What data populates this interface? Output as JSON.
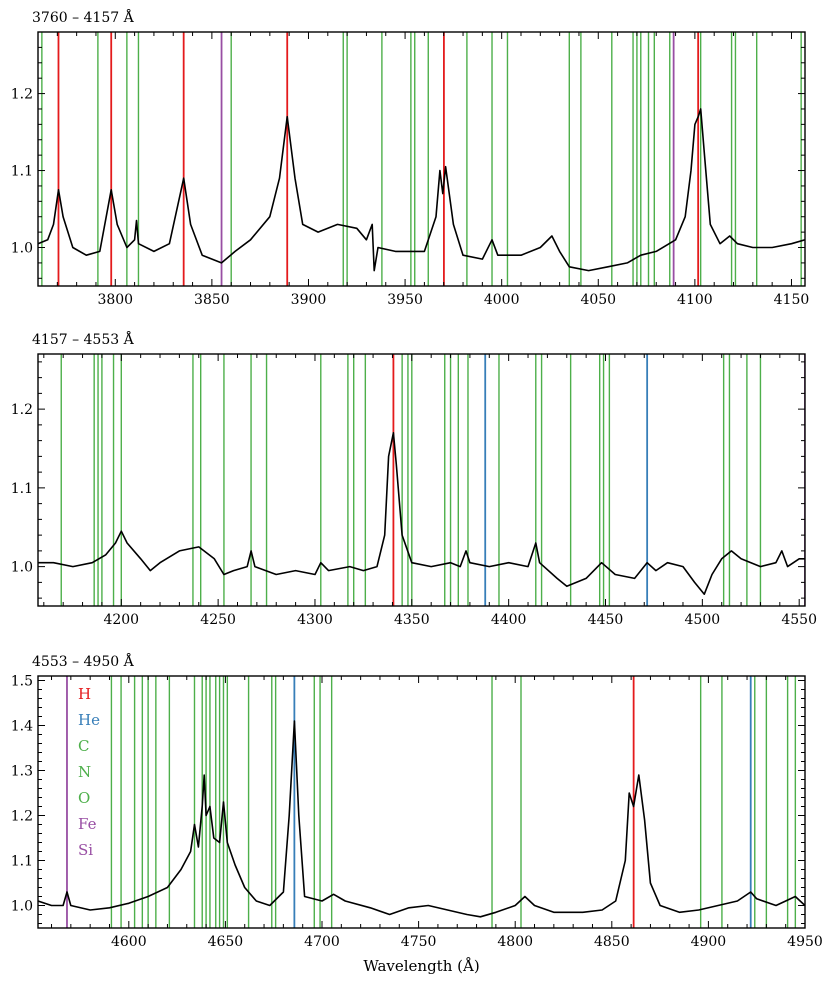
{
  "chart_data": [
    {
      "type": "line",
      "title": "3760 – 4157 Å",
      "xlim": [
        3760,
        4157
      ],
      "ylim": [
        0.95,
        1.28
      ],
      "xticks": [
        3800,
        3850,
        3900,
        3950,
        4000,
        4050,
        4100,
        4150
      ],
      "yticks": [
        1.0,
        1.1,
        1.2
      ],
      "xlabel": "",
      "ylabel": "",
      "grid": false,
      "line_colors": {
        "H": "#e41a1c",
        "He": "#377eb8",
        "CNO": "#4daf4a",
        "FeSi": "#984ea3"
      },
      "lines": {
        "H": [
          3770.6,
          3797.9,
          3835.4,
          3889.0,
          3970.1,
          4101.7
        ],
        "He": [],
        "CNO": [
          3762,
          3791,
          3806,
          3812,
          3860,
          3918,
          3920,
          3938,
          3953,
          3955,
          3962,
          3982,
          3995,
          4003,
          4035,
          4041,
          4057,
          4068,
          4070,
          4072,
          4076,
          4079,
          4087,
          4103,
          4119,
          4121,
          4132,
          4155
        ],
        "FeSi": [
          3855,
          4089
        ]
      },
      "spectrum": [
        [
          3760,
          1.005
        ],
        [
          3765,
          1.01
        ],
        [
          3768,
          1.03
        ],
        [
          3770.6,
          1.075
        ],
        [
          3773,
          1.04
        ],
        [
          3778,
          1.0
        ],
        [
          3785,
          0.99
        ],
        [
          3792,
          0.995
        ],
        [
          3797.9,
          1.075
        ],
        [
          3801,
          1.03
        ],
        [
          3806,
          1.0
        ],
        [
          3810,
          1.01
        ],
        [
          3811,
          1.035
        ],
        [
          3812,
          1.005
        ],
        [
          3820,
          0.995
        ],
        [
          3828,
          1.005
        ],
        [
          3835.4,
          1.09
        ],
        [
          3839,
          1.03
        ],
        [
          3845,
          0.99
        ],
        [
          3855,
          0.98
        ],
        [
          3862,
          0.995
        ],
        [
          3870,
          1.01
        ],
        [
          3880,
          1.04
        ],
        [
          3885,
          1.09
        ],
        [
          3889,
          1.17
        ],
        [
          3893,
          1.09
        ],
        [
          3897,
          1.03
        ],
        [
          3905,
          1.02
        ],
        [
          3915,
          1.03
        ],
        [
          3925,
          1.025
        ],
        [
          3930,
          1.01
        ],
        [
          3933,
          1.03
        ],
        [
          3934,
          0.97
        ],
        [
          3936,
          1.0
        ],
        [
          3945,
          0.995
        ],
        [
          3960,
          0.995
        ],
        [
          3966,
          1.04
        ],
        [
          3968,
          1.1
        ],
        [
          3969.5,
          1.07
        ],
        [
          3971,
          1.105
        ],
        [
          3975,
          1.03
        ],
        [
          3980,
          0.99
        ],
        [
          3990,
          0.985
        ],
        [
          3995,
          1.01
        ],
        [
          3998,
          0.99
        ],
        [
          4010,
          0.99
        ],
        [
          4020,
          1.0
        ],
        [
          4026,
          1.015
        ],
        [
          4030,
          0.995
        ],
        [
          4035,
          0.975
        ],
        [
          4045,
          0.97
        ],
        [
          4055,
          0.975
        ],
        [
          4065,
          0.98
        ],
        [
          4072,
          0.99
        ],
        [
          4080,
          0.995
        ],
        [
          4090,
          1.01
        ],
        [
          4095,
          1.04
        ],
        [
          4098,
          1.1
        ],
        [
          4100,
          1.16
        ],
        [
          4101.7,
          1.17
        ],
        [
          4103,
          1.18
        ],
        [
          4105,
          1.12
        ],
        [
          4108,
          1.03
        ],
        [
          4113,
          1.005
        ],
        [
          4118,
          1.015
        ],
        [
          4122,
          1.005
        ],
        [
          4130,
          1.0
        ],
        [
          4140,
          1.0
        ],
        [
          4150,
          1.005
        ],
        [
          4157,
          1.01
        ]
      ]
    },
    {
      "type": "line",
      "title": "4157 – 4553 Å",
      "xlim": [
        4157,
        4553
      ],
      "ylim": [
        0.95,
        1.27
      ],
      "xticks": [
        4200,
        4250,
        4300,
        4350,
        4400,
        4450,
        4500,
        4550
      ],
      "yticks": [
        1.0,
        1.1,
        1.2
      ],
      "xlabel": "",
      "ylabel": "",
      "grid": false,
      "line_colors": {
        "H": "#e41a1c",
        "He": "#377eb8",
        "CNO": "#4daf4a",
        "FeSi": "#984ea3"
      },
      "lines": {
        "H": [
          4340.5
        ],
        "He": [
          4387.9,
          4471.5
        ],
        "CNO": [
          4169,
          4186,
          4188,
          4190,
          4196,
          4200,
          4237,
          4241,
          4253,
          4267,
          4275,
          4303,
          4317,
          4320,
          4326,
          4345,
          4348,
          4350,
          4367,
          4370,
          4374,
          4379,
          4395,
          4414,
          4417,
          4432,
          4447,
          4449,
          4452,
          4511,
          4514,
          4523,
          4530
        ],
        "FeSi": [
          4553
        ]
      },
      "spectrum": [
        [
          4157,
          1.005
        ],
        [
          4165,
          1.005
        ],
        [
          4175,
          1.0
        ],
        [
          4185,
          1.005
        ],
        [
          4192,
          1.015
        ],
        [
          4197,
          1.03
        ],
        [
          4200,
          1.045
        ],
        [
          4203,
          1.03
        ],
        [
          4210,
          1.01
        ],
        [
          4215,
          0.995
        ],
        [
          4220,
          1.005
        ],
        [
          4230,
          1.02
        ],
        [
          4240,
          1.025
        ],
        [
          4248,
          1.01
        ],
        [
          4253,
          0.99
        ],
        [
          4258,
          0.995
        ],
        [
          4265,
          1.0
        ],
        [
          4267,
          1.02
        ],
        [
          4269,
          1.0
        ],
        [
          4280,
          0.99
        ],
        [
          4290,
          0.995
        ],
        [
          4300,
          0.99
        ],
        [
          4303,
          1.005
        ],
        [
          4307,
          0.995
        ],
        [
          4318,
          1.0
        ],
        [
          4325,
          0.995
        ],
        [
          4332,
          1.0
        ],
        [
          4336,
          1.04
        ],
        [
          4338,
          1.14
        ],
        [
          4340.5,
          1.17
        ],
        [
          4342,
          1.13
        ],
        [
          4345,
          1.04
        ],
        [
          4350,
          1.005
        ],
        [
          4360,
          1.0
        ],
        [
          4370,
          1.005
        ],
        [
          4375,
          1.0
        ],
        [
          4378,
          1.02
        ],
        [
          4380,
          1.005
        ],
        [
          4390,
          1.0
        ],
        [
          4400,
          1.005
        ],
        [
          4410,
          1.0
        ],
        [
          4414,
          1.03
        ],
        [
          4416,
          1.005
        ],
        [
          4425,
          0.985
        ],
        [
          4430,
          0.975
        ],
        [
          4440,
          0.985
        ],
        [
          4448,
          1.005
        ],
        [
          4455,
          0.99
        ],
        [
          4465,
          0.985
        ],
        [
          4471.5,
          1.005
        ],
        [
          4476,
          0.995
        ],
        [
          4482,
          1.005
        ],
        [
          4490,
          1.0
        ],
        [
          4496,
          0.98
        ],
        [
          4501,
          0.965
        ],
        [
          4505,
          0.99
        ],
        [
          4510,
          1.01
        ],
        [
          4515,
          1.02
        ],
        [
          4520,
          1.01
        ],
        [
          4530,
          1.0
        ],
        [
          4538,
          1.005
        ],
        [
          4541,
          1.02
        ],
        [
          4544,
          1.0
        ],
        [
          4550,
          1.01
        ],
        [
          4553,
          1.01
        ]
      ]
    },
    {
      "type": "line",
      "title": "4553 – 4950 Å",
      "xlim": [
        4553,
        4950
      ],
      "ylim": [
        0.95,
        1.51
      ],
      "xticks": [
        4600,
        4650,
        4700,
        4750,
        4800,
        4850,
        4900,
        4950
      ],
      "yticks": [
        1.0,
        1.1,
        1.2,
        1.3,
        1.4,
        1.5
      ],
      "xlabel": "Wavelength (Å)",
      "ylabel": "",
      "grid": false,
      "legend": {
        "placement": "top-left",
        "entries": [
          {
            "label": "H",
            "color": "#e41a1c"
          },
          {
            "label": "He",
            "color": "#377eb8"
          },
          {
            "label": "C",
            "color": "#4daf4a"
          },
          {
            "label": "N",
            "color": "#4daf4a"
          },
          {
            "label": "O",
            "color": "#4daf4a"
          },
          {
            "label": "Fe",
            "color": "#984ea3"
          },
          {
            "label": "Si",
            "color": "#984ea3"
          }
        ]
      },
      "line_colors": {
        "H": "#e41a1c",
        "He": "#377eb8",
        "CNO": "#4daf4a",
        "FeSi": "#984ea3"
      },
      "lines": {
        "H": [
          4861.3
        ],
        "He": [
          4685.7,
          4921.9
        ],
        "CNO": [
          4591,
          4596,
          4603,
          4607,
          4610,
          4614,
          4621,
          4634,
          4638,
          4640,
          4642,
          4645,
          4647,
          4649,
          4651,
          4662,
          4674,
          4676,
          4696,
          4699,
          4705,
          4788,
          4803,
          4896,
          4907,
          4924,
          4930,
          4941,
          4945
        ],
        "FeSi": [
          4568
        ]
      },
      "spectrum": [
        [
          4553,
          1.01
        ],
        [
          4560,
          1.0
        ],
        [
          4566,
          1.0
        ],
        [
          4568,
          1.03
        ],
        [
          4570,
          1.0
        ],
        [
          4580,
          0.99
        ],
        [
          4590,
          0.995
        ],
        [
          4600,
          1.005
        ],
        [
          4610,
          1.02
        ],
        [
          4620,
          1.04
        ],
        [
          4627,
          1.08
        ],
        [
          4632,
          1.12
        ],
        [
          4634,
          1.18
        ],
        [
          4636,
          1.13
        ],
        [
          4638,
          1.22
        ],
        [
          4639,
          1.29
        ],
        [
          4640,
          1.2
        ],
        [
          4642,
          1.22
        ],
        [
          4644,
          1.15
        ],
        [
          4647,
          1.14
        ],
        [
          4649,
          1.23
        ],
        [
          4651,
          1.14
        ],
        [
          4655,
          1.09
        ],
        [
          4660,
          1.04
        ],
        [
          4666,
          1.01
        ],
        [
          4673,
          1.0
        ],
        [
          4680,
          1.03
        ],
        [
          4683,
          1.2
        ],
        [
          4685.7,
          1.41
        ],
        [
          4688,
          1.2
        ],
        [
          4691,
          1.02
        ],
        [
          4700,
          1.01
        ],
        [
          4706,
          1.025
        ],
        [
          4712,
          1.01
        ],
        [
          4725,
          0.995
        ],
        [
          4735,
          0.98
        ],
        [
          4745,
          0.995
        ],
        [
          4755,
          1.0
        ],
        [
          4765,
          0.99
        ],
        [
          4775,
          0.98
        ],
        [
          4782,
          0.975
        ],
        [
          4790,
          0.985
        ],
        [
          4800,
          1.0
        ],
        [
          4805,
          1.02
        ],
        [
          4810,
          1.0
        ],
        [
          4820,
          0.985
        ],
        [
          4835,
          0.985
        ],
        [
          4845,
          0.99
        ],
        [
          4852,
          1.01
        ],
        [
          4857,
          1.1
        ],
        [
          4859,
          1.25
        ],
        [
          4861.3,
          1.22
        ],
        [
          4864,
          1.29
        ],
        [
          4867,
          1.19
        ],
        [
          4870,
          1.05
        ],
        [
          4875,
          1.0
        ],
        [
          4885,
          0.985
        ],
        [
          4895,
          0.99
        ],
        [
          4905,
          1.0
        ],
        [
          4915,
          1.01
        ],
        [
          4921.9,
          1.03
        ],
        [
          4925,
          1.015
        ],
        [
          4935,
          1.0
        ],
        [
          4940,
          1.01
        ],
        [
          4945,
          1.02
        ],
        [
          4950,
          1.0
        ]
      ]
    }
  ]
}
